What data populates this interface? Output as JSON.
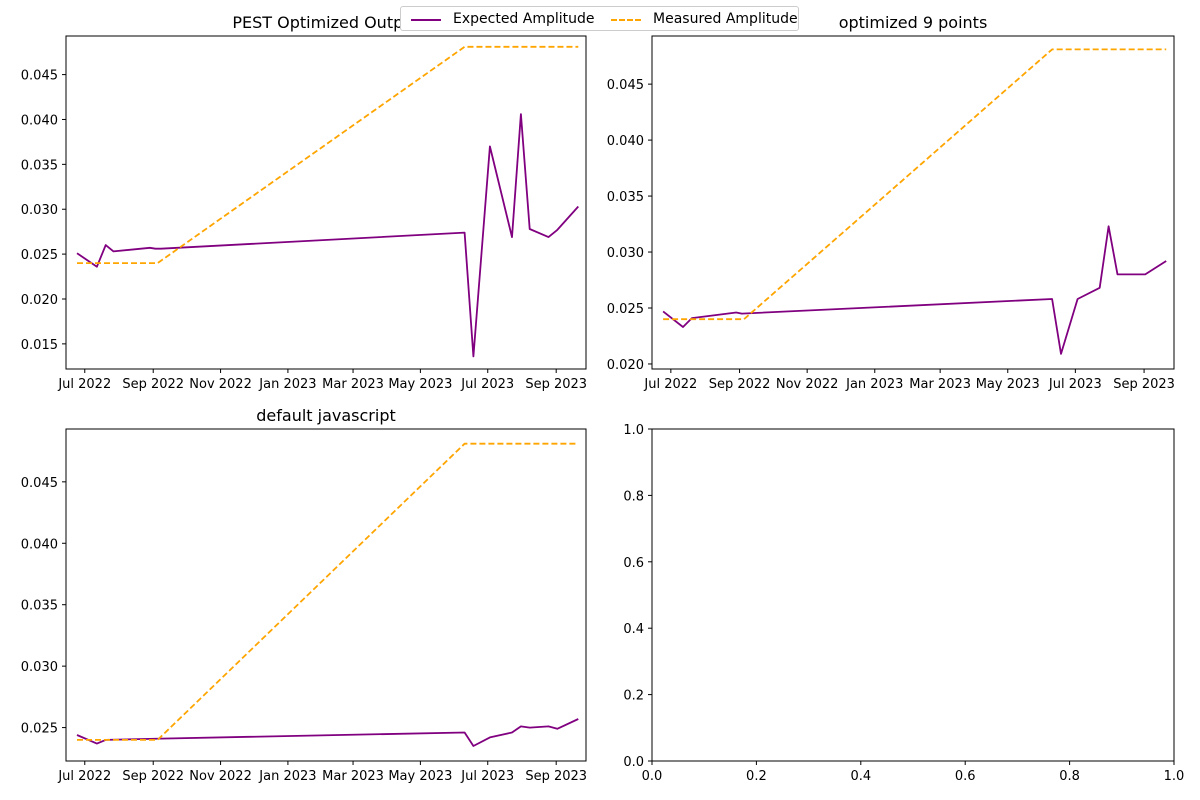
{
  "legend": {
    "entries": [
      {
        "name": "Expected Amplitude",
        "color": "#800080",
        "style": "solid"
      },
      {
        "name": "Measured Amplitude",
        "color": "#FFA500",
        "style": "dashed"
      }
    ],
    "placement": "top-center"
  },
  "chart_data": [
    {
      "type": "line",
      "title": "PEST Optimized Output",
      "xlabel": "",
      "ylabel": "",
      "xlim": [
        "2022-06-14",
        "2023-09-28"
      ],
      "ylim": [
        0.0122,
        0.0493
      ],
      "xticks": [
        "Jul 2022",
        "Sep 2022",
        "Nov 2022",
        "Jan 2023",
        "Mar 2023",
        "May 2023",
        "Jul 2023",
        "Sep 2023"
      ],
      "yticks": [
        "0.015",
        "0.020",
        "0.025",
        "0.030",
        "0.035",
        "0.040",
        "0.045"
      ],
      "ytick_values": [
        0.015,
        0.02,
        0.025,
        0.03,
        0.035,
        0.04,
        0.045
      ],
      "grid": false,
      "series": [
        {
          "name": "Expected Amplitude",
          "color": "#800080",
          "style": "solid",
          "x": [
            "2022-06-24",
            "2022-07-12",
            "2022-07-20",
            "2022-07-27",
            "2022-08-29",
            "2022-09-03",
            "2022-09-08",
            "2023-06-10",
            "2023-06-18",
            "2023-07-03",
            "2023-07-23",
            "2023-07-31",
            "2023-08-08",
            "2023-08-25",
            "2023-09-02",
            "2023-09-21"
          ],
          "y": [
            0.0251,
            0.0236,
            0.026,
            0.0253,
            0.0257,
            0.0256,
            0.0256,
            0.0274,
            0.0136,
            0.037,
            0.0269,
            0.0406,
            0.0278,
            0.0269,
            0.0277,
            0.0303
          ]
        },
        {
          "name": "Measured Amplitude",
          "color": "#FFA500",
          "style": "dashed",
          "x": [
            "2022-06-24",
            "2022-09-05",
            "2023-06-10",
            "2023-09-21"
          ],
          "y": [
            0.024,
            0.024,
            0.0481,
            0.0481
          ]
        }
      ]
    },
    {
      "type": "line",
      "title": "optimized 9 points",
      "xlabel": "",
      "ylabel": "",
      "xlim": [
        "2022-06-14",
        "2023-09-28"
      ],
      "ylim": [
        0.01955,
        0.0493
      ],
      "xticks": [
        "Jul 2022",
        "Sep 2022",
        "Nov 2022",
        "Jan 2023",
        "Mar 2023",
        "May 2023",
        "Jul 2023",
        "Sep 2023"
      ],
      "yticks": [
        "0.020",
        "0.025",
        "0.030",
        "0.035",
        "0.040",
        "0.045"
      ],
      "ytick_values": [
        0.02,
        0.025,
        0.03,
        0.035,
        0.04,
        0.045
      ],
      "grid": false,
      "series": [
        {
          "name": "Expected Amplitude",
          "color": "#800080",
          "style": "solid",
          "x": [
            "2022-06-24",
            "2022-07-12",
            "2022-07-20",
            "2022-08-29",
            "2022-09-03",
            "2023-06-10",
            "2023-06-18",
            "2023-07-03",
            "2023-07-23",
            "2023-07-31",
            "2023-08-08",
            "2023-08-25",
            "2023-09-02",
            "2023-09-21"
          ],
          "y": [
            0.0247,
            0.0233,
            0.0241,
            0.0246,
            0.0245,
            0.0258,
            0.0209,
            0.0258,
            0.0268,
            0.0323,
            0.028,
            0.028,
            0.028,
            0.0292
          ]
        },
        {
          "name": "Measured Amplitude",
          "color": "#FFA500",
          "style": "dashed",
          "x": [
            "2022-06-24",
            "2022-09-05",
            "2023-06-10",
            "2023-09-21"
          ],
          "y": [
            0.024,
            0.024,
            0.0481,
            0.0481
          ]
        }
      ]
    },
    {
      "type": "line",
      "title": "default javascript",
      "xlabel": "",
      "ylabel": "",
      "xlim": [
        "2022-06-14",
        "2023-09-28"
      ],
      "ylim": [
        0.02228,
        0.0493
      ],
      "xticks": [
        "Jul 2022",
        "Sep 2022",
        "Nov 2022",
        "Jan 2023",
        "Mar 2023",
        "May 2023",
        "Jul 2023",
        "Sep 2023"
      ],
      "yticks": [
        "0.025",
        "0.030",
        "0.035",
        "0.040",
        "0.045"
      ],
      "ytick_values": [
        0.025,
        0.03,
        0.035,
        0.04,
        0.045
      ],
      "grid": false,
      "series": [
        {
          "name": "Expected Amplitude",
          "color": "#800080",
          "style": "solid",
          "x": [
            "2022-06-24",
            "2022-07-12",
            "2022-07-20",
            "2022-09-08",
            "2023-06-10",
            "2023-06-18",
            "2023-07-03",
            "2023-07-23",
            "2023-07-31",
            "2023-08-08",
            "2023-08-25",
            "2023-09-02",
            "2023-09-21"
          ],
          "y": [
            0.0244,
            0.0237,
            0.024,
            0.0241,
            0.0246,
            0.0235,
            0.0242,
            0.0246,
            0.0251,
            0.025,
            0.0251,
            0.0249,
            0.0257
          ]
        },
        {
          "name": "Measured Amplitude",
          "color": "#FFA500",
          "style": "dashed",
          "x": [
            "2022-06-24",
            "2022-09-05",
            "2023-06-10",
            "2023-09-21"
          ],
          "y": [
            0.024,
            0.024,
            0.0481,
            0.0481
          ]
        }
      ]
    },
    {
      "type": "line",
      "title": "",
      "xlabel": "",
      "ylabel": "",
      "xlim": [
        0,
        1
      ],
      "ylim": [
        0,
        1
      ],
      "xticks": [
        "0.0",
        "0.2",
        "0.4",
        "0.6",
        "0.8",
        "1.0"
      ],
      "xtick_values": [
        0,
        0.2,
        0.4,
        0.6,
        0.8,
        1.0
      ],
      "yticks": [
        "0.0",
        "0.2",
        "0.4",
        "0.6",
        "0.8",
        "1.0"
      ],
      "ytick_values": [
        0,
        0.2,
        0.4,
        0.6,
        0.8,
        1.0
      ],
      "grid": false,
      "series": []
    }
  ]
}
